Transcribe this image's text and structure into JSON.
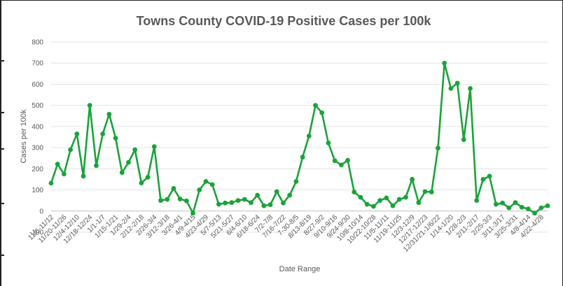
{
  "chart_data": {
    "type": "line",
    "title": "Towns County COVID-19 Positive Cases per 100k",
    "xlabel": "Date Range",
    "ylabel": "Cases per 100k",
    "ylim": [
      -100,
      800
    ],
    "yticks": [
      -100,
      0,
      100,
      200,
      300,
      400,
      500,
      600,
      700,
      800
    ],
    "grid": true,
    "legend": "none",
    "x_tick_labels": [
      "11/6-11/12",
      "11/20-11/26",
      "12/4-12/10",
      "12/18-12/24",
      "1/1-1/7",
      "1/15-1/21",
      "1/29-2/4",
      "2/12-2/18",
      "2/26-3/4",
      "3/12-3/18",
      "3/26-4/1",
      "4/9-4/15",
      "4/23-4/29",
      "5/7-5/13",
      "5/21-5/27",
      "6/4-6/10",
      "6/18-6/24",
      "7/2-7/8",
      "7/16-7/22",
      "7-30-8/5",
      "8/13-8/19",
      "8/27-9/2",
      "9/10-9/16",
      "9/24-9/30",
      "10/8-10/14",
      "10/22-10/28",
      "11/5-11/11",
      "11/19-11/25",
      "12/3-12/9",
      "12/17-12/23",
      "12/31/21-1/6/22",
      "1/14-1/20",
      "1/28-2/3",
      "2/11-2/17",
      "2/25-3/3",
      "3/11-3/17",
      "3/25-3/31",
      "4/8-4/14",
      "4/22-4/28"
    ],
    "series": [
      {
        "color": "#1aa33a",
        "values": [
          132,
          222,
          175,
          290,
          365,
          165,
          500,
          215,
          365,
          458,
          345,
          182,
          230,
          290,
          133,
          160,
          305,
          50,
          55,
          107,
          57,
          48,
          -10,
          100,
          140,
          125,
          32,
          38,
          40,
          50,
          55,
          40,
          75,
          25,
          30,
          92,
          38,
          75,
          140,
          255,
          355,
          500,
          465,
          322,
          238,
          218,
          240,
          90,
          65,
          32,
          22,
          50,
          62,
          25,
          55,
          65,
          150,
          40,
          92,
          90,
          298,
          700,
          580,
          605,
          338,
          580,
          50,
          150,
          165,
          32,
          38,
          15,
          40,
          18,
          10,
          -10,
          15,
          25
        ]
      }
    ]
  }
}
